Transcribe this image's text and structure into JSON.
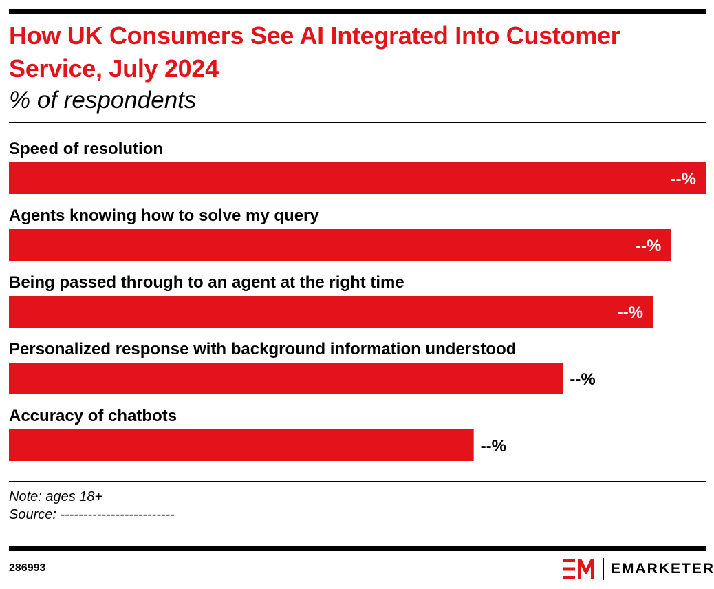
{
  "header": {
    "title": "How UK Consumers See AI Integrated Into Customer Service, July 2024",
    "subtitle": "% of respondents"
  },
  "chart_data": {
    "type": "bar",
    "orientation": "horizontal",
    "categories": [
      "Speed of resolution",
      "Agents knowing how to solve my query",
      "Being passed through to an agent at the right time",
      "Personalized response with background information understood",
      "Accuracy of chatbots"
    ],
    "values": [
      100,
      95,
      92.4,
      79.5,
      66.7
    ],
    "value_labels": [
      "--%",
      "--%",
      "--%",
      "--%",
      "--%"
    ],
    "title": "How UK Consumers See AI Integrated Into Customer Service, July 2024",
    "subtitle": "% of respondents",
    "xlim": [
      0,
      100
    ],
    "grid": false,
    "legend": "none",
    "colors": {
      "bar": "#e3131b",
      "label_inside": "#ffffff",
      "label_outside": "#000000"
    }
  },
  "footer": {
    "note": "Note: ages 18+",
    "source": "Source: -------------------------",
    "chart_id": "286993",
    "brand": "EMARKETER"
  }
}
